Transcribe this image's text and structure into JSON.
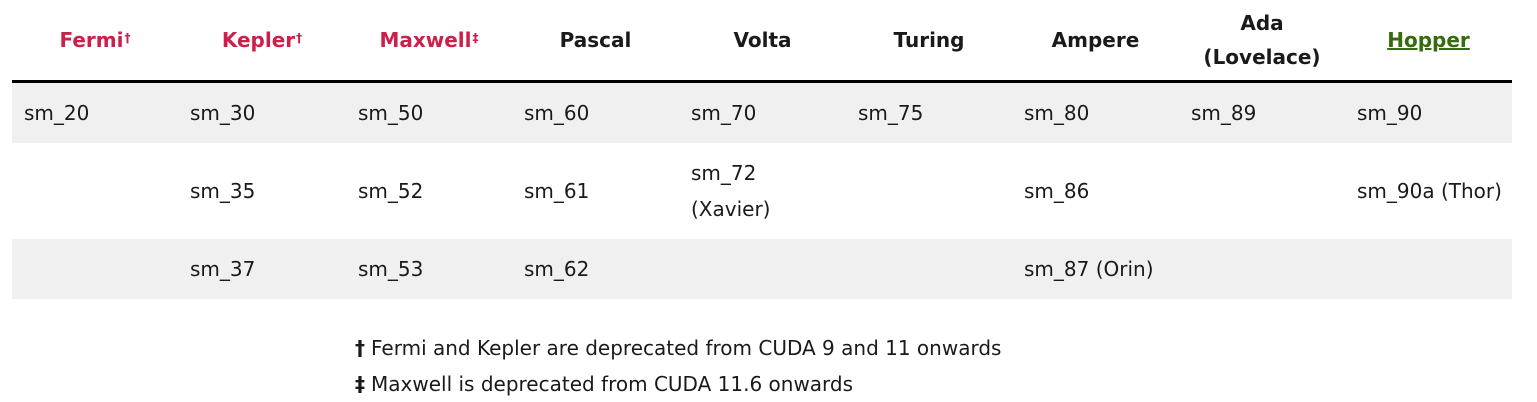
{
  "headers": [
    {
      "label": "Fermi",
      "mark": "†",
      "color": "#cc1f4a"
    },
    {
      "label": "Kepler",
      "mark": "†",
      "color": "#cc1f4a"
    },
    {
      "label": "Maxwell",
      "mark": "‡",
      "color": "#cc1f4a"
    },
    {
      "label": "Pascal",
      "mark": "",
      "color": "#000000"
    },
    {
      "label": "Volta",
      "mark": "",
      "color": "#000000"
    },
    {
      "label": "Turing",
      "mark": "",
      "color": "#000000"
    },
    {
      "label": "Ampere",
      "mark": "",
      "color": "#000000"
    },
    {
      "label": "Ada (Lovelace)",
      "mark": "",
      "color": "#000000"
    },
    {
      "label": "Hopper",
      "mark": "",
      "color": "#386b0f"
    }
  ],
  "header_ada_line1": "Ada",
  "header_ada_line2": "(Lovelace)",
  "rows": [
    [
      "sm_20",
      "sm_30",
      "sm_50",
      "sm_60",
      "sm_70",
      "sm_75",
      "sm_80",
      "sm_89",
      "sm_90"
    ],
    [
      "",
      "sm_35",
      "sm_52",
      "sm_61",
      "sm_72 (Xavier)",
      "",
      "sm_86",
      "",
      "sm_90a (Thor)"
    ],
    [
      "",
      "sm_37",
      "sm_53",
      "sm_62",
      "",
      "",
      "sm_87 (Orin)",
      "",
      ""
    ]
  ],
  "volta_row2_line1": "sm_72",
  "volta_row2_line2": "(Xavier)",
  "notes": [
    {
      "mark": "†",
      "text": "Fermi and Kepler are deprecated from CUDA 9 and 11 onwards"
    },
    {
      "mark": "‡",
      "text": "Maxwell is deprecated from CUDA 11.6 onwards"
    }
  ]
}
